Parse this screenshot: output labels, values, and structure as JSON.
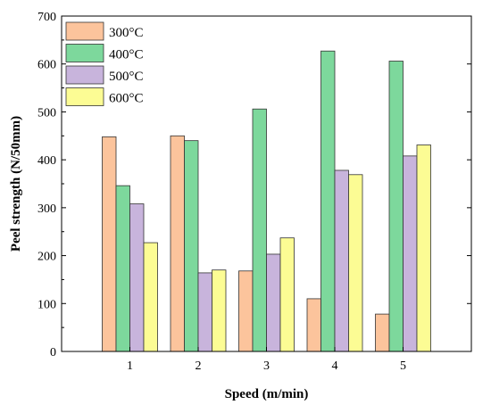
{
  "chart_data": {
    "type": "bar",
    "title": "",
    "xlabel": "Speed (m/min)",
    "ylabel": "Peel strength (N/50mm)",
    "categories": [
      "1",
      "2",
      "3",
      "4",
      "5"
    ],
    "ylim": [
      0,
      700
    ],
    "yticks": [
      0,
      100,
      200,
      300,
      400,
      500,
      600,
      700
    ],
    "grid": false,
    "legend_position": "top-left",
    "series": [
      {
        "name": "300°C",
        "color": "#FCC49C",
        "values": [
          448,
          450,
          168,
          110,
          78
        ]
      },
      {
        "name": "400°C",
        "color": "#7DD89C",
        "values": [
          346,
          440,
          506,
          627,
          606
        ]
      },
      {
        "name": "500°C",
        "color": "#C8B4DC",
        "values": [
          308,
          164,
          203,
          378,
          408
        ]
      },
      {
        "name": "600°C",
        "color": "#FCFC94",
        "values": [
          227,
          170,
          237,
          369,
          431
        ]
      }
    ]
  }
}
